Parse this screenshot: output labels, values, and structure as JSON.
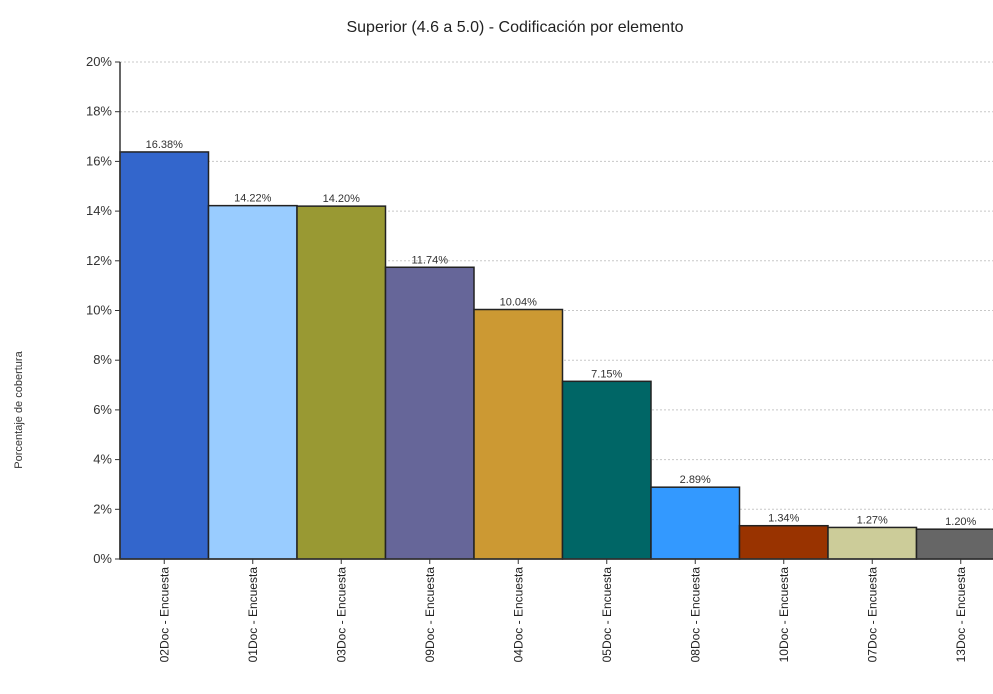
{
  "chart_data": {
    "type": "bar",
    "title": "Superior (4.6 a 5.0) - Codificación por elemento",
    "ylabel": "Porcentaje de cobertura",
    "xlabel": "",
    "ylim": [
      0,
      20
    ],
    "yticks": [
      "0%",
      "2%",
      "4%",
      "6%",
      "8%",
      "10%",
      "12%",
      "14%",
      "16%",
      "18%",
      "20%"
    ],
    "ytick_values": [
      0,
      2,
      4,
      6,
      8,
      10,
      12,
      14,
      16,
      18,
      20
    ],
    "grid": true,
    "categories": [
      "02Doc - Encuesta",
      "01Doc - Encuesta",
      "03Doc - Encuesta",
      "09Doc - Encuesta",
      "04Doc - Encuesta",
      "05Doc - Encuesta",
      "08Doc - Encuesta",
      "10Doc - Encuesta",
      "07Doc - Encuesta",
      "13Doc - Encuesta"
    ],
    "values": [
      16.38,
      14.22,
      14.2,
      11.74,
      10.04,
      7.15,
      2.89,
      1.34,
      1.27,
      1.2
    ],
    "value_labels": [
      "16.38%",
      "14.22%",
      "14.20%",
      "11.74%",
      "10.04%",
      "7.15%",
      "2.89%",
      "1.34%",
      "1.27%",
      "1.20%"
    ],
    "colors": [
      "#3366cc",
      "#99ccff",
      "#999933",
      "#666699",
      "#cc9933",
      "#006666",
      "#3399ff",
      "#993300",
      "#cccc99",
      "#666666"
    ]
  }
}
